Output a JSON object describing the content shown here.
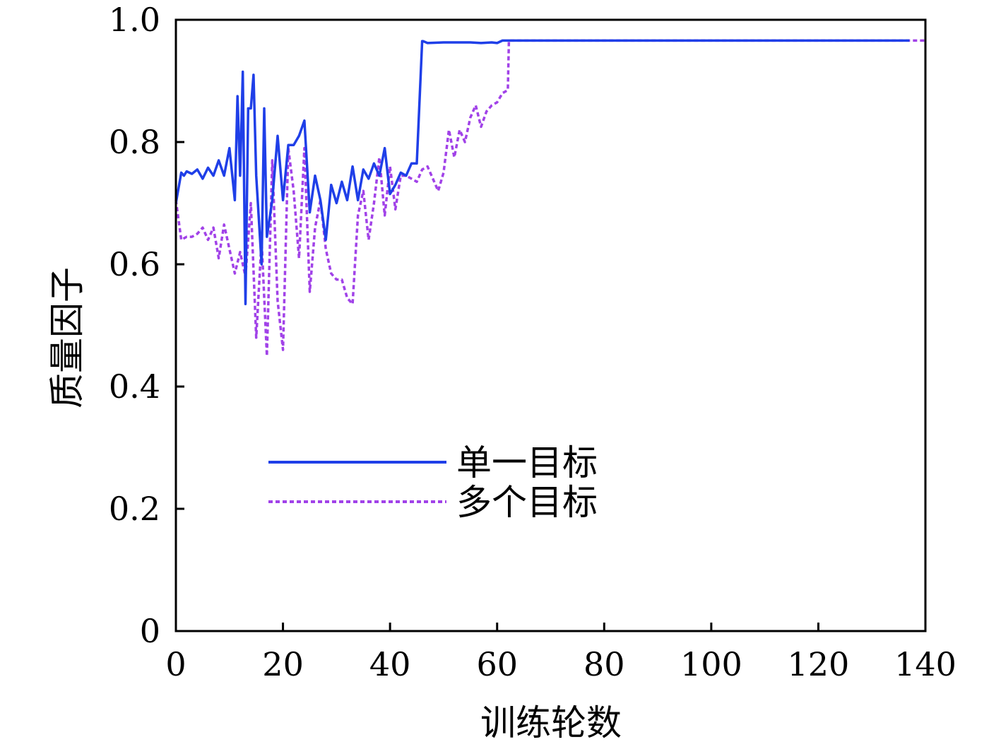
{
  "chart_data": {
    "type": "line",
    "xlabel": "训练轮数",
    "ylabel": "质量因子",
    "xlim": [
      0,
      140
    ],
    "ylim": [
      0,
      1.0
    ],
    "xticks": [
      0,
      20,
      40,
      60,
      80,
      100,
      120,
      140
    ],
    "yticks": [
      0,
      0.2,
      0.4,
      0.6,
      0.8,
      1.0
    ],
    "xtick_labels": [
      "0",
      "20",
      "40",
      "60",
      "80",
      "100",
      "120",
      "140"
    ],
    "ytick_labels": [
      "0",
      "0.2",
      "0.4",
      "0.6",
      "0.8",
      "1.0"
    ],
    "grid": false,
    "legend_position": "center-left",
    "series": [
      {
        "name": "单一目标",
        "color": "#1f3fe8",
        "style": "solid",
        "x": [
          0,
          1,
          1.5,
          2,
          3,
          4,
          5,
          6,
          7,
          8,
          9,
          10,
          11,
          11.5,
          12,
          12.5,
          13,
          13.5,
          14,
          14.5,
          15,
          16,
          16.5,
          17,
          18,
          19,
          20,
          21,
          22,
          23,
          24,
          25,
          26,
          27,
          28,
          29,
          30,
          31,
          32,
          33,
          34,
          35,
          36,
          37,
          38,
          39,
          40,
          41,
          42,
          43,
          44,
          45,
          46,
          46.2,
          47,
          50,
          55,
          57,
          59,
          60,
          61,
          62,
          70,
          90,
          110,
          130,
          137
        ],
        "y": [
          0.7,
          0.75,
          0.745,
          0.752,
          0.748,
          0.755,
          0.74,
          0.758,
          0.745,
          0.77,
          0.745,
          0.79,
          0.705,
          0.875,
          0.745,
          0.915,
          0.535,
          0.855,
          0.855,
          0.91,
          0.745,
          0.6,
          0.855,
          0.645,
          0.705,
          0.81,
          0.705,
          0.795,
          0.795,
          0.81,
          0.835,
          0.685,
          0.745,
          0.705,
          0.64,
          0.73,
          0.7,
          0.735,
          0.705,
          0.76,
          0.705,
          0.755,
          0.74,
          0.765,
          0.745,
          0.79,
          0.715,
          0.73,
          0.75,
          0.745,
          0.765,
          0.765,
          0.965,
          0.965,
          0.962,
          0.963,
          0.963,
          0.962,
          0.963,
          0.962,
          0.966,
          0.966,
          0.966,
          0.966,
          0.966,
          0.966,
          0.966
        ]
      },
      {
        "name": "多个目标",
        "color": "#a142e8",
        "style": "dashed",
        "x": [
          0,
          1,
          2,
          3,
          4,
          5,
          6,
          7,
          8,
          9,
          10,
          11,
          12,
          13,
          14,
          15,
          16,
          17,
          18,
          19,
          20,
          21,
          22,
          23,
          24,
          25,
          26,
          27,
          28,
          29,
          30,
          31,
          32,
          33,
          34,
          35,
          36,
          37,
          38,
          39,
          40,
          41,
          42,
          43,
          44,
          45,
          46,
          47,
          48,
          49,
          50,
          51,
          52,
          53,
          54,
          55,
          56,
          57,
          58,
          59,
          60,
          61,
          62,
          62.2,
          70,
          90,
          110,
          130,
          140
        ],
        "y": [
          0.705,
          0.64,
          0.645,
          0.645,
          0.65,
          0.66,
          0.64,
          0.66,
          0.61,
          0.665,
          0.625,
          0.585,
          0.62,
          0.58,
          0.7,
          0.48,
          0.64,
          0.45,
          0.77,
          0.54,
          0.46,
          0.79,
          0.72,
          0.61,
          0.79,
          0.555,
          0.66,
          0.705,
          0.625,
          0.585,
          0.575,
          0.575,
          0.545,
          0.535,
          0.68,
          0.72,
          0.64,
          0.7,
          0.775,
          0.68,
          0.76,
          0.69,
          0.745,
          0.745,
          0.74,
          0.735,
          0.755,
          0.76,
          0.74,
          0.72,
          0.75,
          0.82,
          0.775,
          0.82,
          0.8,
          0.84,
          0.86,
          0.825,
          0.85,
          0.86,
          0.865,
          0.88,
          0.885,
          0.966,
          0.966,
          0.966,
          0.966,
          0.966,
          0.966
        ]
      }
    ]
  }
}
